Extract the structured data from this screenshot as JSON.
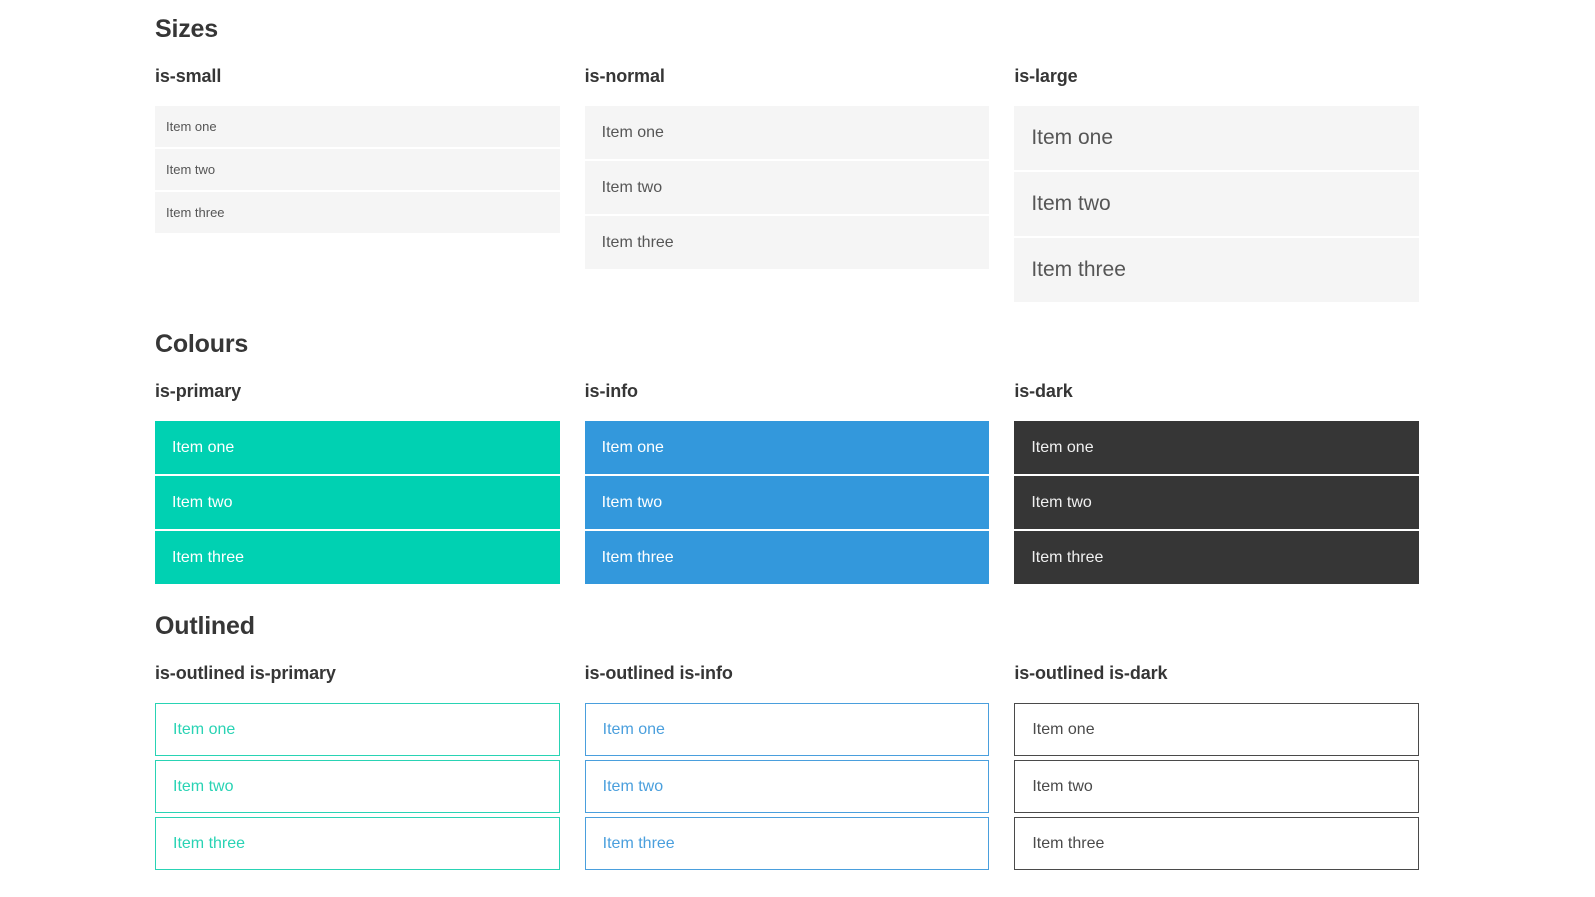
{
  "colors": {
    "primary": "#00d1b2",
    "info": "#3398dc",
    "dark": "#363636",
    "item_background": "#f5f5f5",
    "heading_text": "#363636",
    "item_text": "#565656"
  },
  "sections": [
    {
      "title": "Sizes",
      "columns": [
        {
          "heading": "is-small",
          "items": [
            "Item one",
            "Item two",
            "Item three"
          ]
        },
        {
          "heading": "is-normal",
          "items": [
            "Item one",
            "Item two",
            "Item three"
          ]
        },
        {
          "heading": "is-large",
          "items": [
            "Item one",
            "Item two",
            "Item three"
          ]
        }
      ]
    },
    {
      "title": "Colours",
      "columns": [
        {
          "heading": "is-primary",
          "items": [
            "Item one",
            "Item two",
            "Item three"
          ]
        },
        {
          "heading": "is-info",
          "items": [
            "Item one",
            "Item two",
            "Item three"
          ]
        },
        {
          "heading": "is-dark",
          "items": [
            "Item one",
            "Item two",
            "Item three"
          ]
        }
      ]
    },
    {
      "title": "Outlined",
      "columns": [
        {
          "heading": "is-outlined is-primary",
          "items": [
            "Item one",
            "Item two",
            "Item three"
          ]
        },
        {
          "heading": "is-outlined is-info",
          "items": [
            "Item one",
            "Item two",
            "Item three"
          ]
        },
        {
          "heading": "is-outlined is-dark",
          "items": [
            "Item one",
            "Item two",
            "Item three"
          ]
        }
      ]
    }
  ]
}
